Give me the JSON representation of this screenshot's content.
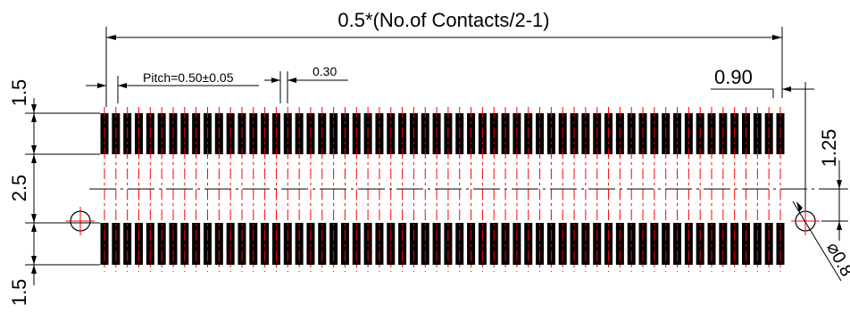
{
  "diagram": {
    "overall_length_label": "0.5*(No.of Contacts/2-1)",
    "pitch_label": "Pitch=0.50±0.05",
    "pad_width_label": "0.30",
    "edge_offset_label": "0.90",
    "pad_length_top_label": "1.5",
    "row_gap_label": "2.5",
    "pad_length_bottom_label": "1.5",
    "center_to_hole_label": "1.25",
    "hole_diameter_label": "⌀0.8"
  },
  "pads": {
    "count_per_row": 60
  },
  "colors": {
    "pad": "#000000",
    "centerline": "#ff0000",
    "dimension": "#000000"
  }
}
